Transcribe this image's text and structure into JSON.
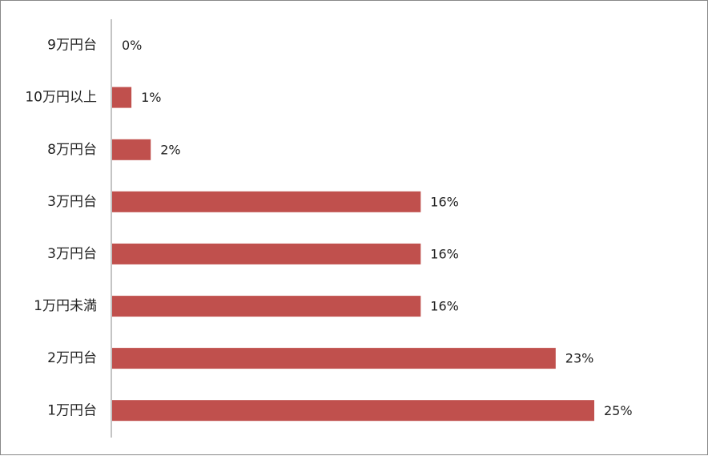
{
  "chart_data": {
    "type": "bar",
    "orientation": "horizontal",
    "title": "",
    "xlabel": "",
    "ylabel": "",
    "categories": [
      "9万円台",
      "10万円以上",
      "8万円台",
      "3万円台",
      "3万円台",
      "1万円未満",
      "2万円台",
      "1万円台"
    ],
    "values": [
      0,
      1,
      2,
      16,
      16,
      16,
      23,
      25
    ],
    "value_labels": [
      "0%",
      "1%",
      "2%",
      "16%",
      "16%",
      "16%",
      "23%",
      "25%"
    ],
    "xlim": [
      0,
      25
    ],
    "grid": false,
    "legend": "none",
    "bar_color": "#c0504d",
    "axis_color": "#888888"
  }
}
